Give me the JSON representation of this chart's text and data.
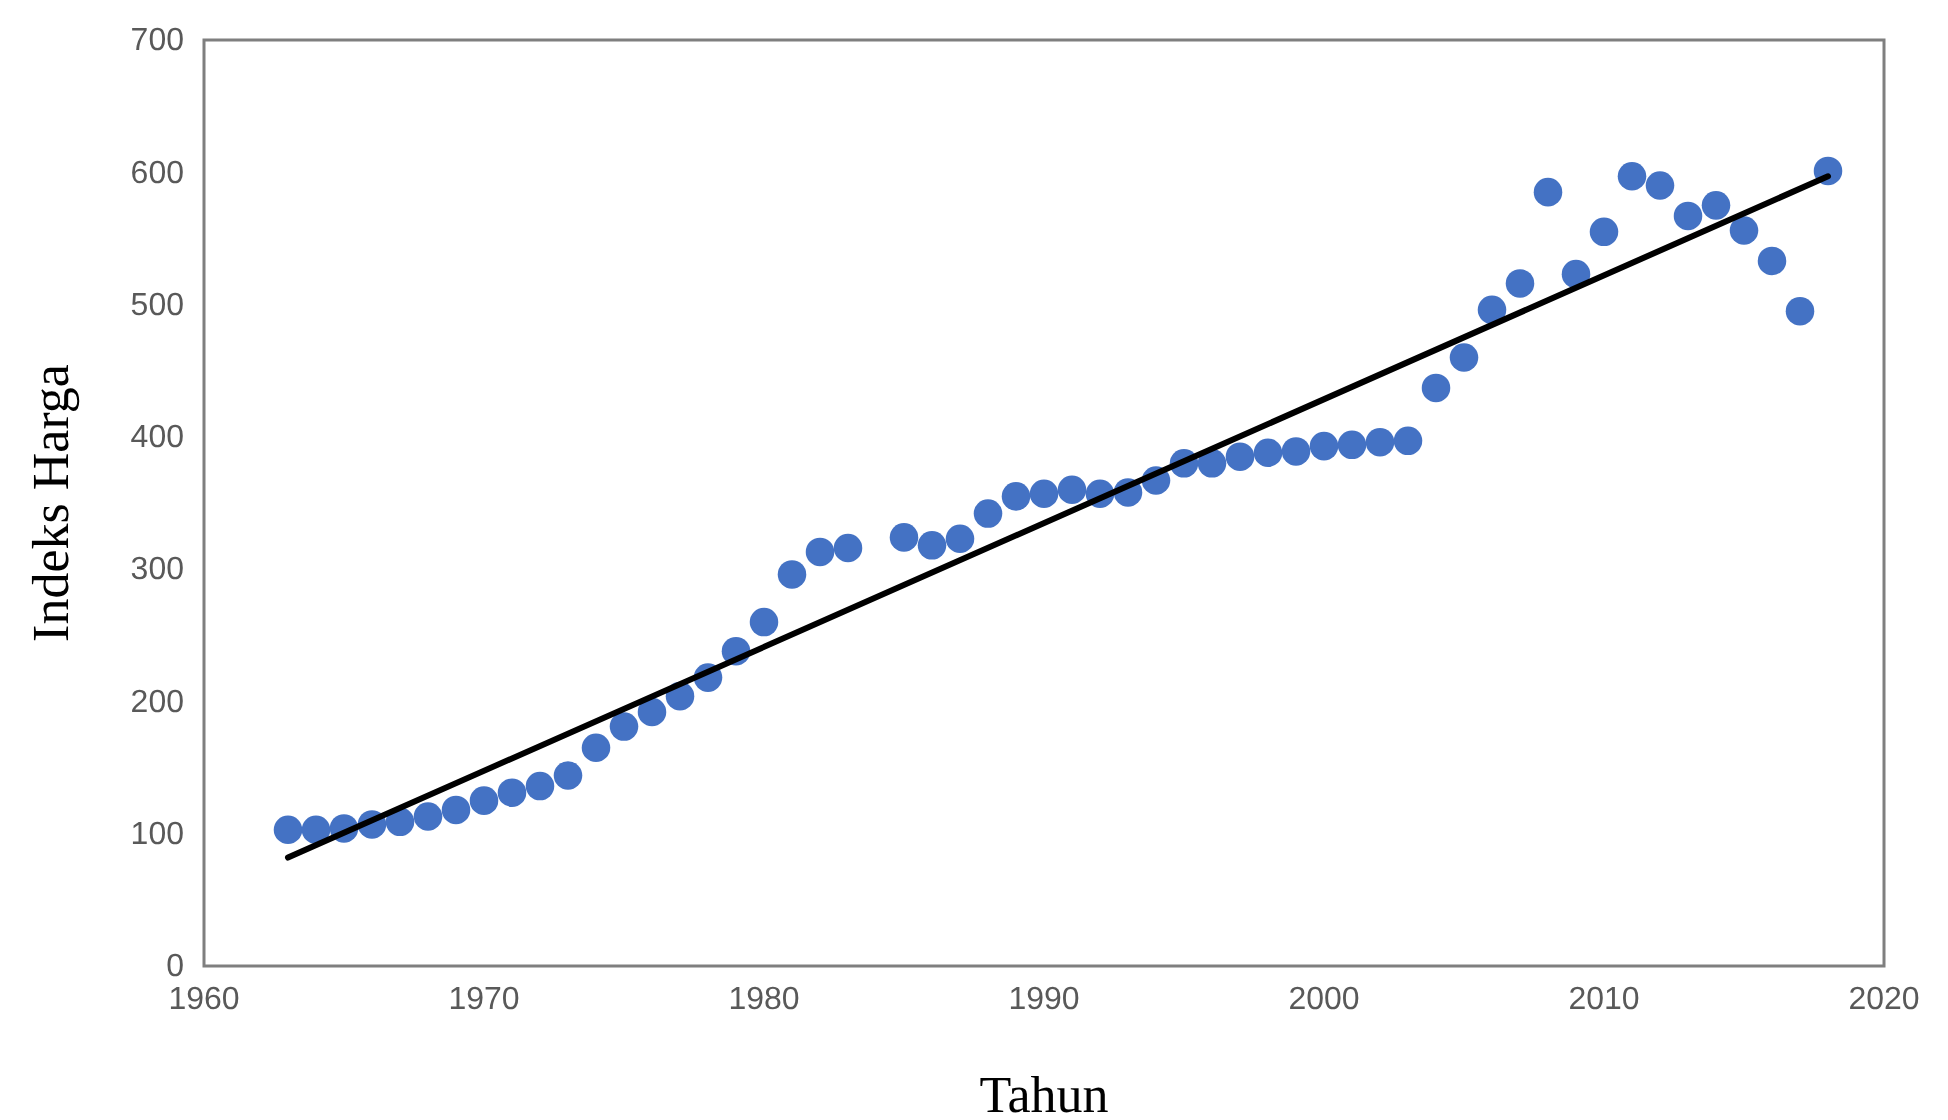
{
  "chart_data": {
    "type": "scatter",
    "xlabel": "Tahun",
    "ylabel": "Indeks Harga",
    "xlim": [
      1960,
      2020
    ],
    "xticks": [
      1960,
      1970,
      1980,
      1990,
      2000,
      2010,
      2020
    ],
    "ylim": [
      0,
      700
    ],
    "yticks": [
      0,
      100,
      200,
      300,
      400,
      500,
      600,
      700
    ],
    "grid": false,
    "series": [
      {
        "color": "#4472c4",
        "marker": "circle",
        "x": [
          1963,
          1964,
          1965,
          1966,
          1967,
          1968,
          1969,
          1970,
          1971,
          1972,
          1973,
          1974,
          1975,
          1976,
          1977,
          1978,
          1979,
          1980,
          1981,
          1982,
          1983,
          1985,
          1986,
          1987,
          1988,
          1989,
          1990,
          1991,
          1992,
          1993,
          1994,
          1995,
          1996,
          1997,
          1998,
          1999,
          2000,
          2001,
          2002,
          2003,
          2004,
          2005,
          2006,
          2007,
          2008,
          2009,
          2010,
          2011,
          2012,
          2013,
          2014,
          2015,
          2016,
          2017,
          2018
        ],
        "values": [
          103,
          103,
          104,
          107,
          109,
          113,
          118,
          125,
          131,
          136,
          144,
          165,
          181,
          192,
          204,
          218,
          238,
          260,
          296,
          313,
          316,
          324,
          318,
          323,
          342,
          355,
          357,
          360,
          357,
          358,
          367,
          380,
          380,
          385,
          388,
          389,
          393,
          394,
          396,
          397,
          437,
          460,
          496,
          516,
          585,
          523,
          555,
          597,
          590,
          567,
          575,
          556,
          533,
          495,
          601
        ]
      },
      {
        "type": "line",
        "color": "#000000",
        "line_style": "solid",
        "marker": "none",
        "x": [
          1963,
          2018
        ],
        "values": [
          82,
          597
        ]
      }
    ]
  }
}
